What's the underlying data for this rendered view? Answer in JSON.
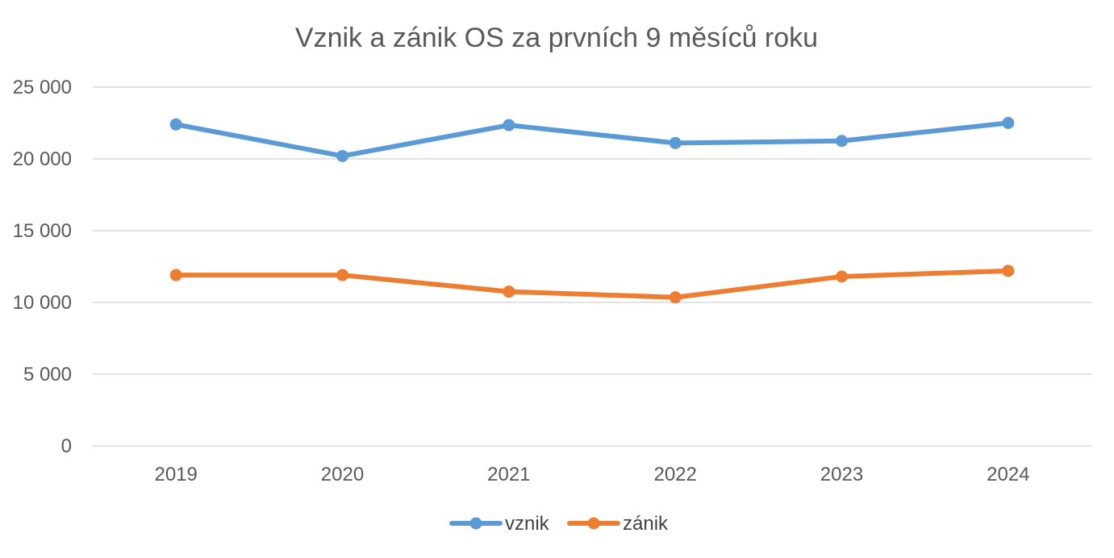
{
  "chart_data": {
    "type": "line",
    "title": "Vznik a zánik OS za prvních 9 měsíců roku",
    "xlabel": "",
    "ylabel": "",
    "categories": [
      "2019",
      "2020",
      "2021",
      "2022",
      "2023",
      "2024"
    ],
    "ylim": [
      0,
      25000
    ],
    "yticks": [
      0,
      5000,
      10000,
      15000,
      20000,
      25000
    ],
    "ytick_labels": [
      "0",
      "5 000",
      "10 000",
      "15 000",
      "20 000",
      "25 000"
    ],
    "grid": true,
    "legend_position": "bottom",
    "series": [
      {
        "name": "vznik",
        "color": "#5b9bd5",
        "values": [
          22400,
          20200,
          22350,
          21100,
          21250,
          22500
        ]
      },
      {
        "name": "zánik",
        "color": "#ed7d31",
        "values": [
          11900,
          11900,
          10750,
          10350,
          11800,
          12200
        ]
      }
    ]
  }
}
